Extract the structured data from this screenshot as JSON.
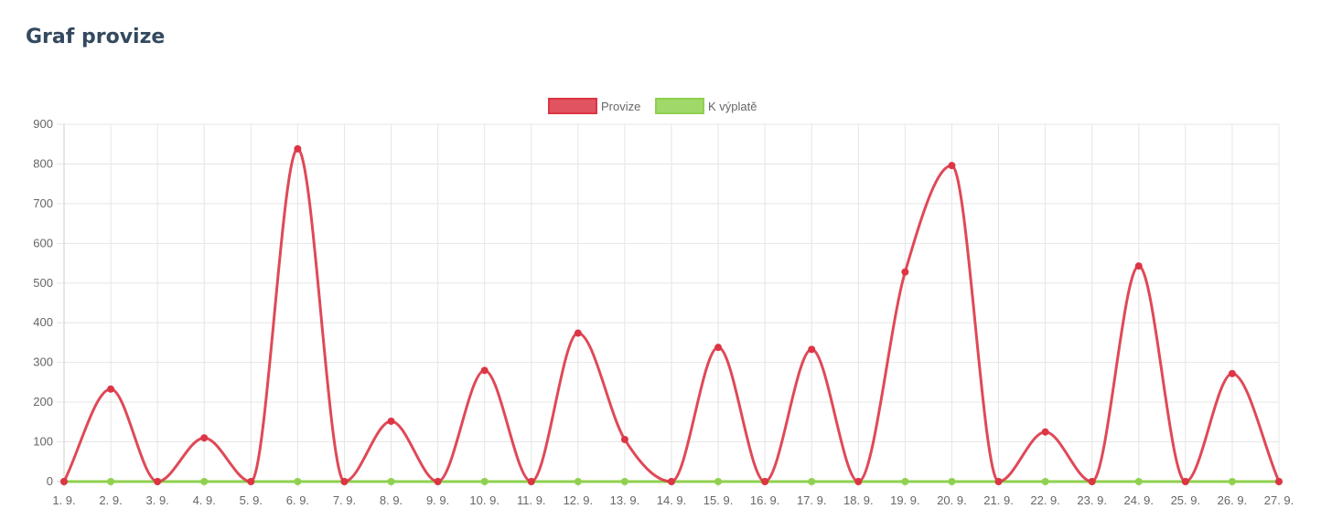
{
  "page": {
    "title": "Graf provize"
  },
  "chart_data": {
    "type": "line",
    "categories": [
      "1. 9.",
      "2. 9.",
      "3. 9.",
      "4. 9.",
      "5. 9.",
      "6. 9.",
      "7. 9.",
      "8. 9.",
      "9. 9.",
      "10. 9.",
      "11. 9.",
      "12. 9.",
      "13. 9.",
      "14. 9.",
      "15. 9.",
      "16. 9.",
      "17. 9.",
      "18. 9.",
      "19. 9.",
      "20. 9.",
      "21. 9.",
      "22. 9.",
      "23. 9.",
      "24. 9.",
      "25. 9.",
      "26. 9.",
      "27. 9."
    ],
    "series": [
      {
        "name": "Provize",
        "color": "#dc3545",
        "values": [
          0,
          233,
          0,
          110,
          0,
          838,
          0,
          152,
          0,
          280,
          0,
          374,
          106,
          0,
          338,
          0,
          333,
          0,
          528,
          796,
          0,
          125,
          0,
          543,
          0,
          272,
          0
        ]
      },
      {
        "name": "K výplatě",
        "color": "#8fd14f",
        "values": [
          0,
          0,
          0,
          0,
          0,
          0,
          0,
          0,
          0,
          0,
          0,
          0,
          0,
          0,
          0,
          0,
          0,
          0,
          0,
          0,
          0,
          0,
          0,
          0,
          0,
          0,
          0
        ]
      }
    ],
    "ylim": [
      0,
      900
    ],
    "yticks": [
      0,
      100,
      200,
      300,
      400,
      500,
      600,
      700,
      800,
      900
    ],
    "grid": true,
    "legend_position": "top-center",
    "title": "",
    "xlabel": "",
    "ylabel": ""
  }
}
